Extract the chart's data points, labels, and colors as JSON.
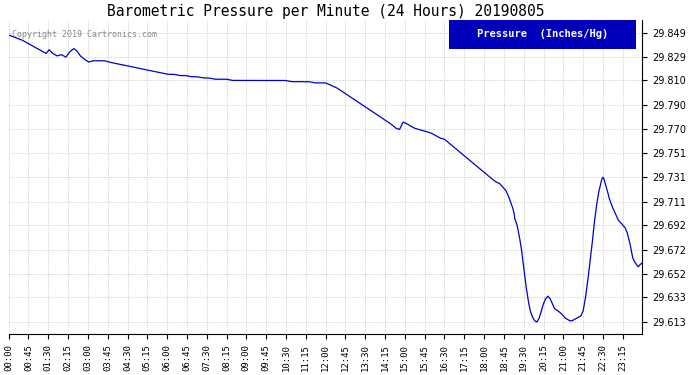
{
  "title": "Barometric Pressure per Minute (24 Hours) 20190805",
  "copyright_text": "Copyright 2019 Cartronics.com",
  "legend_label": "Pressure  (Inches/Hg)",
  "legend_bg": "#0000bb",
  "legend_fg": "#ffffff",
  "line_color": "#0000cc",
  "background_color": "#ffffff",
  "grid_color": "#bbbbbb",
  "yticks": [
    29.613,
    29.633,
    29.652,
    29.672,
    29.692,
    29.711,
    29.731,
    29.751,
    29.77,
    29.79,
    29.81,
    29.829,
    29.849
  ],
  "ylim": [
    29.603,
    29.859
  ],
  "xtick_labels": [
    "00:00",
    "00:45",
    "01:30",
    "02:15",
    "03:00",
    "03:45",
    "04:30",
    "05:15",
    "06:00",
    "06:45",
    "07:30",
    "08:15",
    "09:00",
    "09:45",
    "10:30",
    "11:15",
    "12:00",
    "12:45",
    "13:30",
    "14:15",
    "15:00",
    "15:45",
    "16:30",
    "17:15",
    "18:00",
    "18:45",
    "19:30",
    "20:15",
    "21:00",
    "21:45",
    "22:30",
    "23:15"
  ],
  "waypoints": [
    [
      0,
      29.847
    ],
    [
      15,
      29.845
    ],
    [
      30,
      29.843
    ],
    [
      50,
      29.839
    ],
    [
      65,
      29.836
    ],
    [
      75,
      29.834
    ],
    [
      85,
      29.832
    ],
    [
      92,
      29.835
    ],
    [
      100,
      29.832
    ],
    [
      110,
      29.83
    ],
    [
      120,
      29.831
    ],
    [
      130,
      29.829
    ],
    [
      138,
      29.833
    ],
    [
      148,
      29.836
    ],
    [
      155,
      29.834
    ],
    [
      163,
      29.83
    ],
    [
      173,
      29.827
    ],
    [
      182,
      29.825
    ],
    [
      192,
      29.826
    ],
    [
      205,
      29.826
    ],
    [
      218,
      29.826
    ],
    [
      228,
      29.825
    ],
    [
      240,
      29.824
    ],
    [
      255,
      29.823
    ],
    [
      268,
      29.822
    ],
    [
      280,
      29.821
    ],
    [
      295,
      29.82
    ],
    [
      308,
      29.819
    ],
    [
      322,
      29.818
    ],
    [
      335,
      29.817
    ],
    [
      348,
      29.816
    ],
    [
      362,
      29.815
    ],
    [
      375,
      29.815
    ],
    [
      388,
      29.814
    ],
    [
      402,
      29.814
    ],
    [
      415,
      29.813
    ],
    [
      428,
      29.813
    ],
    [
      442,
      29.812
    ],
    [
      455,
      29.812
    ],
    [
      468,
      29.811
    ],
    [
      482,
      29.811
    ],
    [
      495,
      29.811
    ],
    [
      508,
      29.81
    ],
    [
      522,
      29.81
    ],
    [
      535,
      29.81
    ],
    [
      548,
      29.81
    ],
    [
      562,
      29.81
    ],
    [
      575,
      29.81
    ],
    [
      588,
      29.81
    ],
    [
      602,
      29.81
    ],
    [
      615,
      29.81
    ],
    [
      628,
      29.81
    ],
    [
      642,
      29.809
    ],
    [
      655,
      29.809
    ],
    [
      668,
      29.809
    ],
    [
      682,
      29.809
    ],
    [
      695,
      29.808
    ],
    [
      708,
      29.808
    ],
    [
      720,
      29.808
    ],
    [
      732,
      29.806
    ],
    [
      745,
      29.804
    ],
    [
      758,
      29.801
    ],
    [
      770,
      29.798
    ],
    [
      783,
      29.795
    ],
    [
      795,
      29.792
    ],
    [
      808,
      29.789
    ],
    [
      820,
      29.786
    ],
    [
      833,
      29.783
    ],
    [
      845,
      29.78
    ],
    [
      858,
      29.777
    ],
    [
      870,
      29.774
    ],
    [
      880,
      29.771
    ],
    [
      888,
      29.77
    ],
    [
      896,
      29.776
    ],
    [
      903,
      29.775
    ],
    [
      912,
      29.773
    ],
    [
      922,
      29.771
    ],
    [
      932,
      29.77
    ],
    [
      942,
      29.769
    ],
    [
      952,
      29.768
    ],
    [
      960,
      29.767
    ],
    [
      970,
      29.765
    ],
    [
      980,
      29.763
    ],
    [
      990,
      29.762
    ],
    [
      1000,
      29.759
    ],
    [
      1010,
      29.756
    ],
    [
      1020,
      29.753
    ],
    [
      1030,
      29.75
    ],
    [
      1040,
      29.747
    ],
    [
      1050,
      29.744
    ],
    [
      1060,
      29.741
    ],
    [
      1070,
      29.738
    ],
    [
      1080,
      29.735
    ],
    [
      1090,
      29.732
    ],
    [
      1100,
      29.729
    ],
    [
      1108,
      29.727
    ],
    [
      1115,
      29.726
    ],
    [
      1120,
      29.724
    ],
    [
      1125,
      29.722
    ],
    [
      1130,
      29.72
    ],
    [
      1135,
      29.716
    ],
    [
      1140,
      29.711
    ],
    [
      1145,
      29.706
    ],
    [
      1148,
      29.702
    ],
    [
      1150,
      29.697
    ],
    [
      1155,
      29.692
    ],
    [
      1160,
      29.683
    ],
    [
      1165,
      29.672
    ],
    [
      1170,
      29.658
    ],
    [
      1175,
      29.643
    ],
    [
      1180,
      29.631
    ],
    [
      1185,
      29.622
    ],
    [
      1190,
      29.617
    ],
    [
      1195,
      29.614
    ],
    [
      1200,
      29.613
    ],
    [
      1205,
      29.616
    ],
    [
      1210,
      29.622
    ],
    [
      1215,
      29.628
    ],
    [
      1220,
      29.632
    ],
    [
      1225,
      29.634
    ],
    [
      1230,
      29.632
    ],
    [
      1235,
      29.628
    ],
    [
      1240,
      29.624
    ],
    [
      1248,
      29.622
    ],
    [
      1255,
      29.62
    ],
    [
      1260,
      29.618
    ],
    [
      1265,
      29.616
    ],
    [
      1270,
      29.615
    ],
    [
      1275,
      29.614
    ],
    [
      1280,
      29.614
    ],
    [
      1285,
      29.615
    ],
    [
      1290,
      29.616
    ],
    [
      1295,
      29.617
    ],
    [
      1300,
      29.618
    ],
    [
      1305,
      29.622
    ],
    [
      1310,
      29.632
    ],
    [
      1315,
      29.645
    ],
    [
      1320,
      29.66
    ],
    [
      1325,
      29.675
    ],
    [
      1330,
      29.693
    ],
    [
      1335,
      29.707
    ],
    [
      1340,
      29.718
    ],
    [
      1345,
      29.726
    ],
    [
      1348,
      29.73
    ],
    [
      1350,
      29.731
    ],
    [
      1352,
      29.73
    ],
    [
      1355,
      29.726
    ],
    [
      1360,
      29.72
    ],
    [
      1365,
      29.713
    ],
    [
      1370,
      29.708
    ],
    [
      1375,
      29.704
    ],
    [
      1380,
      29.7
    ],
    [
      1385,
      29.696
    ],
    [
      1390,
      29.694
    ],
    [
      1393,
      29.693
    ],
    [
      1395,
      29.692
    ],
    [
      1400,
      29.69
    ],
    [
      1405,
      29.686
    ],
    [
      1408,
      29.682
    ],
    [
      1412,
      29.676
    ],
    [
      1415,
      29.67
    ],
    [
      1418,
      29.665
    ],
    [
      1422,
      29.662
    ],
    [
      1426,
      29.66
    ],
    [
      1430,
      29.658
    ],
    [
      1435,
      29.66
    ],
    [
      1439,
      29.661
    ]
  ]
}
